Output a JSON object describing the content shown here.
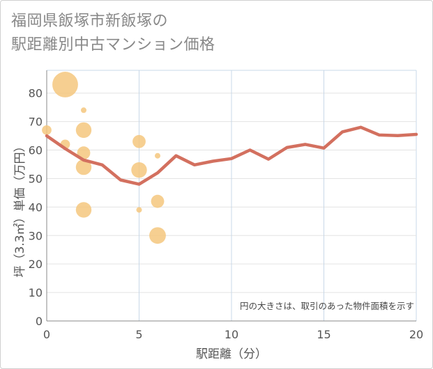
{
  "chart_data": {
    "type": "scatter+line",
    "title_line1": "福岡県飯塚市新飯塚の",
    "title_line2": "駅距離別中古マンション価格",
    "xlabel": "駅距離（分）",
    "ylabel": "坪（3.3㎡）単価（万円）",
    "xlim": [
      0,
      20
    ],
    "ylim": [
      0,
      88
    ],
    "xticks": [
      0,
      5,
      10,
      15,
      20
    ],
    "yticks": [
      0,
      10,
      20,
      30,
      40,
      50,
      60,
      70,
      80
    ],
    "grid_x": true,
    "grid_y": true,
    "note": "円の大きさは、取引のあった物件面積を示す",
    "colors": {
      "line": "#d3705f",
      "bubble": "#f5c77e",
      "grid": "#c8d8e8",
      "text": "#555555"
    },
    "series": [
      {
        "name": "average",
        "type": "line",
        "x": [
          0,
          1,
          2,
          3,
          4,
          5,
          6,
          7,
          8,
          9,
          10,
          11,
          12,
          13,
          14,
          15,
          16,
          17,
          18,
          19,
          20
        ],
        "y": [
          65,
          60.5,
          56.5,
          54.8,
          49.5,
          48,
          52,
          58,
          54.8,
          56.1,
          57,
          60,
          56.8,
          60.9,
          62,
          60.7,
          66.4,
          68,
          65.3,
          65.1,
          65.5
        ]
      },
      {
        "name": "transactions",
        "type": "bubble",
        "points": [
          {
            "x": 1,
            "y": 83,
            "size": 5.0
          },
          {
            "x": 0,
            "y": 67,
            "size": 1.8
          },
          {
            "x": 1,
            "y": 62,
            "size": 1.8
          },
          {
            "x": 2,
            "y": 74,
            "size": 1.0
          },
          {
            "x": 2,
            "y": 67,
            "size": 3.0
          },
          {
            "x": 2,
            "y": 59,
            "size": 2.5
          },
          {
            "x": 2,
            "y": 54,
            "size": 3.0
          },
          {
            "x": 2,
            "y": 39,
            "size": 3.0
          },
          {
            "x": 5,
            "y": 63,
            "size": 2.5
          },
          {
            "x": 5,
            "y": 53,
            "size": 3.0
          },
          {
            "x": 5,
            "y": 39,
            "size": 1.0
          },
          {
            "x": 6,
            "y": 58,
            "size": 1.0
          },
          {
            "x": 6,
            "y": 42,
            "size": 2.5
          },
          {
            "x": 6,
            "y": 30,
            "size": 3.2
          }
        ]
      }
    ]
  }
}
